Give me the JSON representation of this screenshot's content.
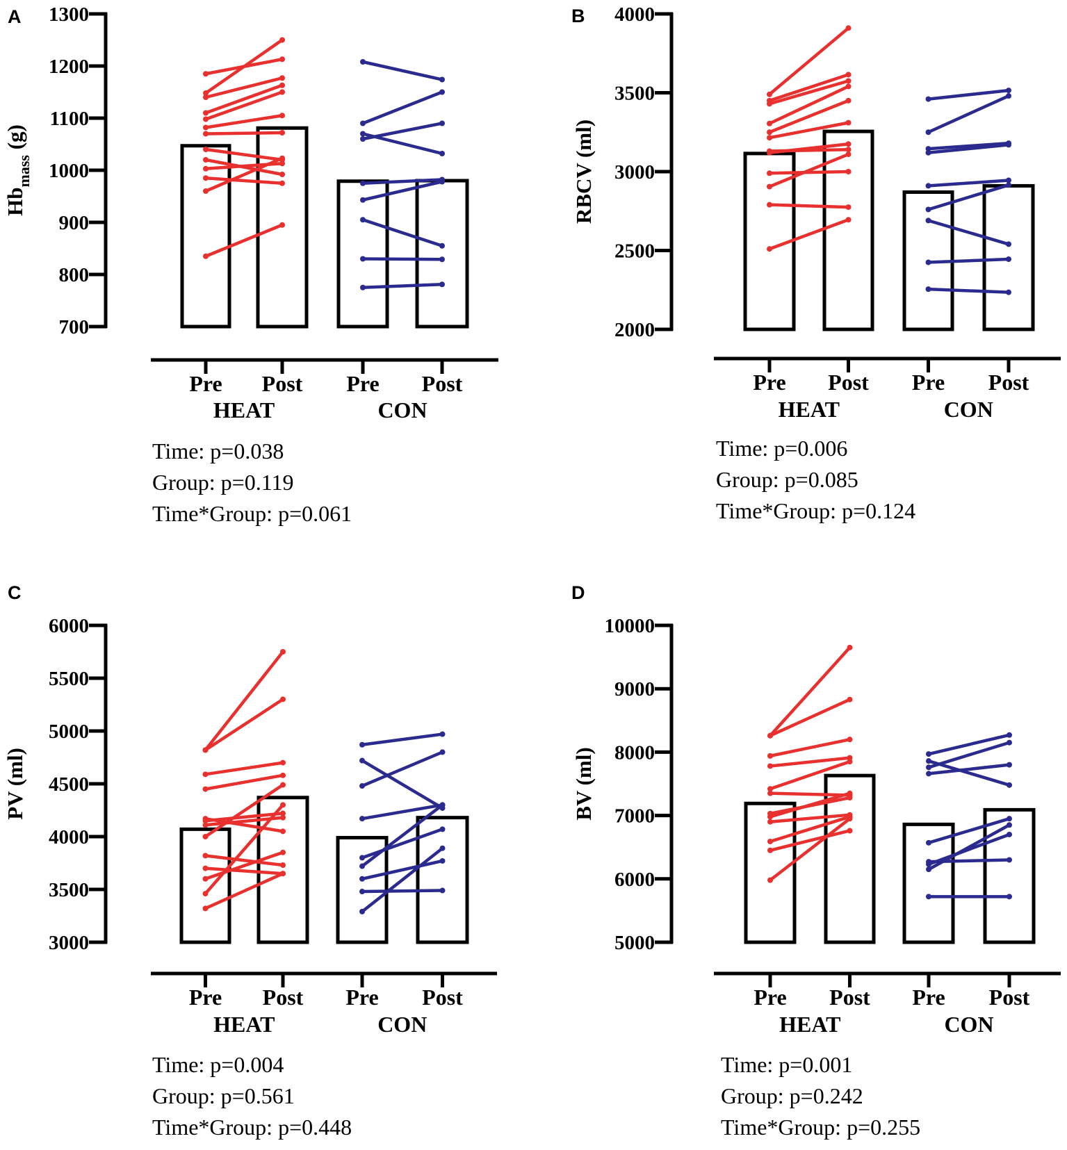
{
  "colors": {
    "heat": "#e8302e",
    "con": "#2b2b8f",
    "bar": "#000000"
  },
  "chart_data": [
    {
      "type": "bar",
      "panel": "A",
      "ylabel": "Hb",
      "ylabel_sub": "mass",
      "ylabel_unit": " (g)",
      "ylim": [
        700,
        1300
      ],
      "yticks": [
        "700",
        "800",
        "900",
        "1000",
        "1100",
        "1200",
        "1300"
      ],
      "categories": [
        "Pre",
        "Post",
        "Pre",
        "Post"
      ],
      "groups": [
        "HEAT",
        "CON"
      ],
      "bar_means": [
        1047,
        1081,
        979,
        980
      ],
      "paired": {
        "HEAT": [
          [
            1185,
            1213
          ],
          [
            1148,
            1250
          ],
          [
            1140,
            1177
          ],
          [
            1110,
            1163
          ],
          [
            1098,
            1150
          ],
          [
            1082,
            1105
          ],
          [
            1070,
            1072
          ],
          [
            1040,
            1020
          ],
          [
            1020,
            992
          ],
          [
            1003,
            1013
          ],
          [
            985,
            975
          ],
          [
            960,
            1023
          ],
          [
            835,
            895
          ]
        ],
        "CON": [
          [
            1208,
            1174
          ],
          [
            1090,
            1150
          ],
          [
            1070,
            1032
          ],
          [
            1060,
            1090
          ],
          [
            975,
            982
          ],
          [
            943,
            978
          ],
          [
            905,
            855
          ],
          [
            830,
            829
          ],
          [
            775,
            781
          ]
        ]
      },
      "stats": [
        "Time: p=0.038",
        "Group: p=0.119",
        "Time*Group: p=0.061"
      ]
    },
    {
      "type": "bar",
      "panel": "B",
      "ylabel": "RBCV (ml)",
      "ylabel_sub": "",
      "ylabel_unit": "",
      "ylim": [
        2000,
        4000
      ],
      "yticks": [
        "2000",
        "2500",
        "3000",
        "3500",
        "4000"
      ],
      "categories": [
        "Pre",
        "Post",
        "Pre",
        "Post"
      ],
      "groups": [
        "HEAT",
        "CON"
      ],
      "bar_means": [
        3115,
        3255,
        2870,
        2910
      ],
      "paired": {
        "HEAT": [
          [
            3490,
            3910
          ],
          [
            3450,
            3615
          ],
          [
            3430,
            3575
          ],
          [
            3305,
            3540
          ],
          [
            3250,
            3450
          ],
          [
            3215,
            3310
          ],
          [
            3130,
            3140
          ],
          [
            3120,
            3175
          ],
          [
            2990,
            3000
          ],
          [
            2905,
            3110
          ],
          [
            2790,
            2775
          ],
          [
            2510,
            2695
          ]
        ],
        "CON": [
          [
            3460,
            3515
          ],
          [
            3250,
            3480
          ],
          [
            3145,
            3180
          ],
          [
            3120,
            3170
          ],
          [
            2910,
            2945
          ],
          [
            2760,
            2915
          ],
          [
            2690,
            2540
          ],
          [
            2425,
            2445
          ],
          [
            2255,
            2235
          ]
        ]
      },
      "stats": [
        "Time: p=0.006",
        "Group: p=0.085",
        "Time*Group: p=0.124"
      ]
    },
    {
      "type": "bar",
      "panel": "C",
      "ylabel": "PV (ml)",
      "ylabel_sub": "",
      "ylabel_unit": "",
      "ylim": [
        3000,
        6000
      ],
      "yticks": [
        "3000",
        "3500",
        "4000",
        "4500",
        "5000",
        "5500",
        "6000"
      ],
      "categories": [
        "Pre",
        "Post",
        "Pre",
        "Post"
      ],
      "groups": [
        "HEAT",
        "CON"
      ],
      "bar_means": [
        4070,
        4370,
        3990,
        4180
      ],
      "paired": {
        "HEAT": [
          [
            4820,
            5750
          ],
          [
            4820,
            5300
          ],
          [
            4590,
            4700
          ],
          [
            4450,
            4580
          ],
          [
            4170,
            4050
          ],
          [
            4150,
            4220
          ],
          [
            4110,
            4180
          ],
          [
            4000,
            4490
          ],
          [
            3820,
            3730
          ],
          [
            3700,
            3650
          ],
          [
            3600,
            3850
          ],
          [
            3460,
            4300
          ],
          [
            3320,
            3650
          ]
        ],
        "CON": [
          [
            4870,
            4970
          ],
          [
            4720,
            4270
          ],
          [
            4480,
            4800
          ],
          [
            4170,
            4300
          ],
          [
            3800,
            4070
          ],
          [
            3720,
            4300
          ],
          [
            3600,
            3770
          ],
          [
            3480,
            3490
          ],
          [
            3290,
            3890
          ]
        ]
      },
      "stats": [
        "Time: p=0.004",
        "Group: p=0.561",
        "Time*Group: p=0.448"
      ]
    },
    {
      "type": "bar",
      "panel": "D",
      "ylabel": "BV (ml)",
      "ylabel_sub": "",
      "ylabel_unit": "",
      "ylim": [
        5000,
        10000
      ],
      "yticks": [
        "5000",
        "6000",
        "7000",
        "8000",
        "9000",
        "10000"
      ],
      "categories": [
        "Pre",
        "Post",
        "Pre",
        "Post"
      ],
      "groups": [
        "HEAT",
        "CON"
      ],
      "bar_means": [
        7190,
        7630,
        6860,
        7090
      ],
      "paired": {
        "HEAT": [
          [
            8260,
            9650
          ],
          [
            8260,
            8830
          ],
          [
            7940,
            8200
          ],
          [
            7780,
            7910
          ],
          [
            7420,
            7850
          ],
          [
            7350,
            7320
          ],
          [
            7030,
            7280
          ],
          [
            6980,
            7350
          ],
          [
            6900,
            7010
          ],
          [
            6590,
            6980
          ],
          [
            6450,
            6760
          ],
          [
            5980,
            6950
          ]
        ],
        "CON": [
          [
            7970,
            8270
          ],
          [
            7860,
            7480
          ],
          [
            7760,
            8150
          ],
          [
            7660,
            7800
          ],
          [
            6570,
            6950
          ],
          [
            6270,
            6300
          ],
          [
            6230,
            6700
          ],
          [
            6150,
            6850
          ],
          [
            5720,
            5720
          ]
        ]
      },
      "stats": [
        "Time: p=0.001",
        "Group: p=0.242",
        "Time*Group: p=0.255"
      ]
    }
  ]
}
